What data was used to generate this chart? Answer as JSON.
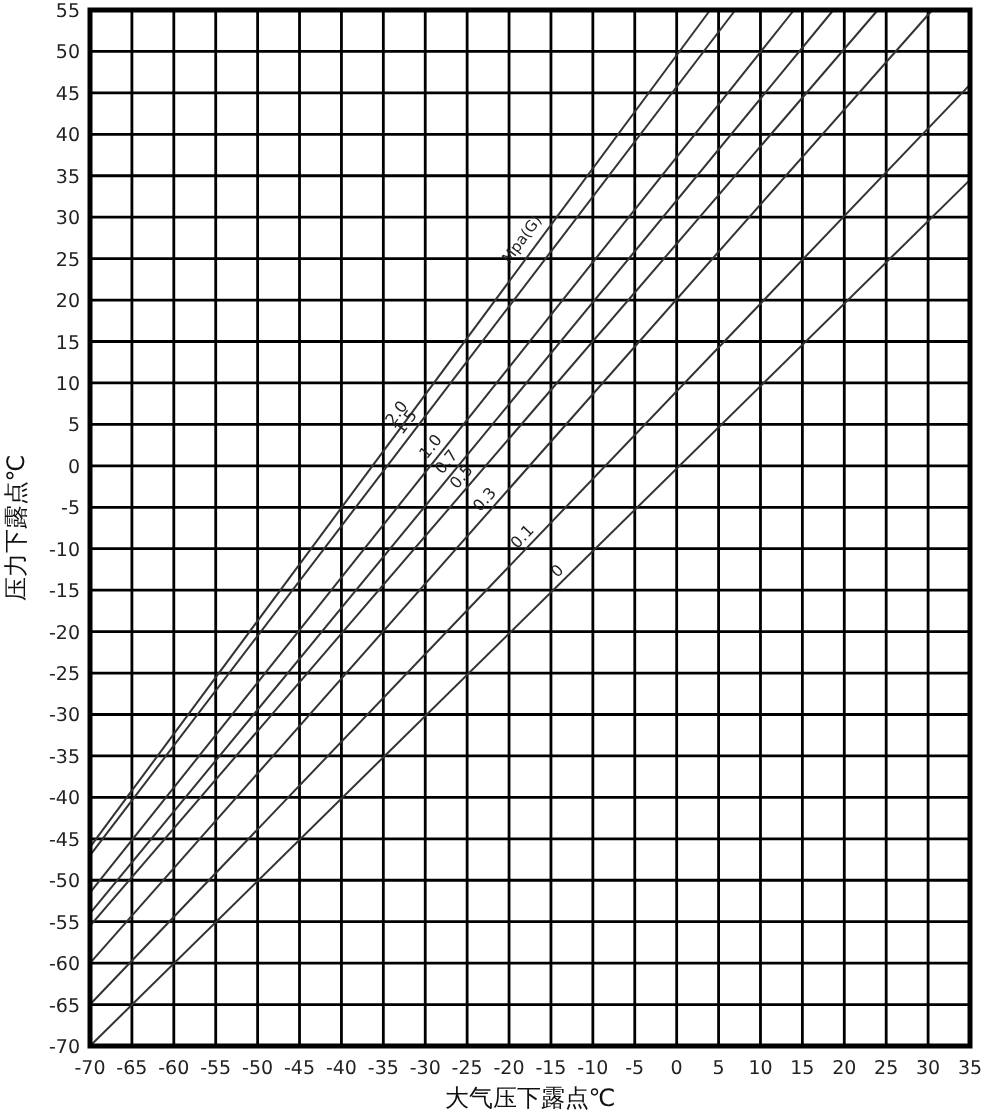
{
  "chart_data": {
    "type": "line",
    "xlabel": "大气压下露点℃",
    "ylabel": "压力下露点℃",
    "xlim": [
      -70,
      35
    ],
    "ylim": [
      -70,
      55
    ],
    "xticks": [
      -70,
      -65,
      -60,
      -55,
      -50,
      -45,
      -40,
      -35,
      -30,
      -25,
      -20,
      -15,
      -10,
      -5,
      0,
      5,
      10,
      15,
      20,
      25,
      30,
      35
    ],
    "yticks": [
      -70,
      -65,
      -60,
      -55,
      -50,
      -45,
      -40,
      -35,
      -30,
      -25,
      -20,
      -15,
      -10,
      -5,
      0,
      5,
      10,
      15,
      20,
      25,
      30,
      35,
      40,
      45,
      50,
      55
    ],
    "grid": true,
    "marker": "none",
    "line_style": "solid",
    "annotations": [
      {
        "text": "Mpa(G)",
        "x": -18,
        "y": 27
      }
    ],
    "series": [
      {
        "name": "2.0",
        "color": "#333333",
        "x": [
          -70,
          4
        ],
        "values": [
          -46,
          55
        ]
      },
      {
        "name": "1.5",
        "color": "#333333",
        "x": [
          -70,
          7
        ],
        "values": [
          -47,
          55
        ]
      },
      {
        "name": "1.0",
        "color": "#333333",
        "x": [
          -70,
          14
        ],
        "values": [
          -51.5,
          55
        ]
      },
      {
        "name": "0.7",
        "color": "#333333",
        "x": [
          -70,
          18.7
        ],
        "values": [
          -54,
          55
        ]
      },
      {
        "name": "0.5",
        "color": "#333333",
        "x": [
          -70,
          24
        ],
        "values": [
          -55.5,
          55
        ]
      },
      {
        "name": "0.3",
        "color": "#333333",
        "x": [
          -70,
          30.5
        ],
        "values": [
          -60,
          55
        ]
      },
      {
        "name": "0.1",
        "color": "#333333",
        "x": [
          -70,
          35
        ],
        "values": [
          -65,
          46
        ]
      },
      {
        "name": "0",
        "color": "#333333",
        "x": [
          -70,
          35
        ],
        "values": [
          -70,
          34.5
        ]
      }
    ]
  }
}
